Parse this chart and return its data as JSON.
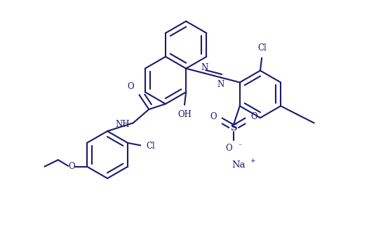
{
  "bg": "#ffffff",
  "lc": "#1a1a6e",
  "lw": 1.5,
  "fs": 8.5,
  "fig_w": 5.26,
  "fig_h": 3.31,
  "dpi": 100,
  "xlim": [
    -0.5,
    10.5
  ],
  "ylim": [
    -0.8,
    6.8
  ],
  "r": 0.78,
  "dbo": 0.16,
  "shrink": 0.09
}
